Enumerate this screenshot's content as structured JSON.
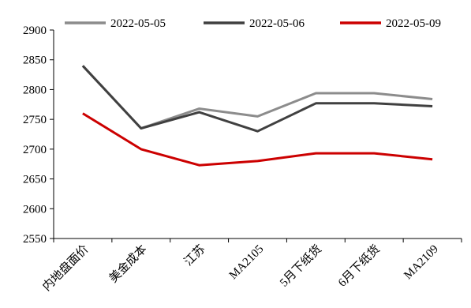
{
  "chart_data": {
    "type": "line",
    "title": "",
    "xlabel": "",
    "ylabel": "",
    "categories": [
      "内地盘面价",
      "美金成本",
      "江苏",
      "MA2105",
      "5月下纸货",
      "6月下纸货",
      "MA2109"
    ],
    "ylim": [
      2550,
      2900
    ],
    "yticks": [
      2550,
      2600,
      2650,
      2700,
      2750,
      2800,
      2850,
      2900
    ],
    "grid": false,
    "legend_position": "top",
    "series": [
      {
        "name": "2022-05-05",
        "color": "#8c8c8c",
        "values": [
          2840,
          2735,
          2768,
          2755,
          2794,
          2794,
          2784
        ]
      },
      {
        "name": "2022-05-06",
        "color": "#404040",
        "values": [
          2840,
          2735,
          2762,
          2730,
          2777,
          2777,
          2772
        ]
      },
      {
        "name": "2022-05-09",
        "color": "#cc0000",
        "values": [
          2760,
          2700,
          2673,
          2680,
          2693,
          2693,
          2683
        ]
      }
    ]
  }
}
